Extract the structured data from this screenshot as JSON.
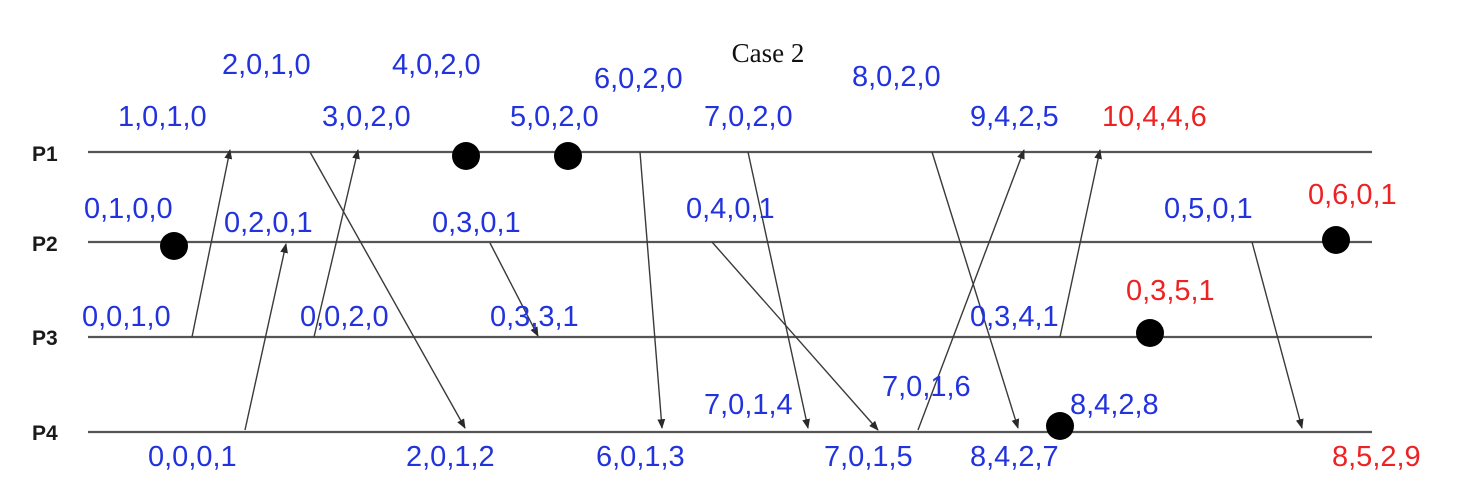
{
  "title": "Case 2",
  "processes": [
    "P1",
    "P2",
    "P3",
    "P4"
  ],
  "labels": {
    "p1_1": "1,0,1,0",
    "p1_2": "2,0,1,0",
    "p1_3": "3,0,2,0",
    "p1_4": "4,0,2,0",
    "p1_5": "5,0,2,0",
    "p1_6": "6,0,2,0",
    "p1_7": "7,0,2,0",
    "p1_8": "8,0,2,0",
    "p1_9": "9,4,2,5",
    "p1_10": "10,4,4,6",
    "p2_1": "0,1,0,0",
    "p2_2": "0,2,0,1",
    "p2_3": "0,3,0,1",
    "p2_4": "0,4,0,1",
    "p2_5": "0,5,0,1",
    "p2_6": "0,6,0,1",
    "p3_1": "0,0,1,0",
    "p3_2": "0,0,2,0",
    "p3_3": "0,3,3,1",
    "p3_4": "0,3,4,1",
    "p3_5": "0,3,5,1",
    "p4_1": "0,0,0,1",
    "p4_2": "2,0,1,2",
    "p4_3": "6,0,1,3",
    "p4_4": "7,0,1,4",
    "p4_5": "7,0,1,5",
    "p4_6": "7,0,1,6",
    "p4_7": "8,4,2,7",
    "p4_8": "8,4,2,8",
    "p4_9": "8,5,2,9"
  },
  "colors": {
    "timestamp": "#2233dd",
    "highlight": "#ee2222",
    "event_dot": "#000000",
    "timeline": "#555555",
    "message": "#3a3a3a"
  }
}
